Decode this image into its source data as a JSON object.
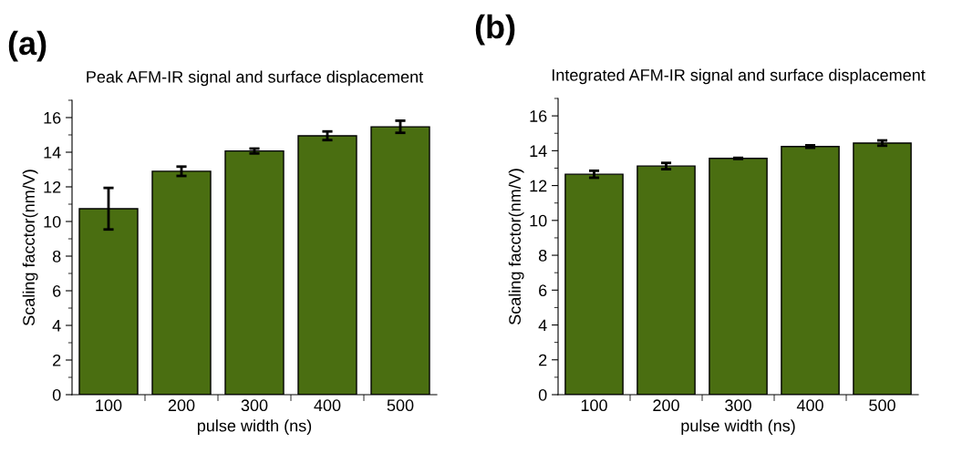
{
  "chart_data": [
    {
      "type": "bar",
      "title": "Peak AFM-IR signal and surface displacement",
      "xlabel": "pulse width (ns)",
      "ylabel": "Scaling facctor(nm/V)",
      "annotations": [
        "(a)"
      ],
      "categories": [
        "100",
        "200",
        "300",
        "400",
        "500"
      ],
      "values": [
        10.74,
        12.9,
        14.07,
        14.95,
        15.47
      ],
      "errors": [
        1.2,
        0.27,
        0.14,
        0.25,
        0.35
      ],
      "color": "#4a6e11",
      "ylim": [
        0,
        17
      ],
      "yticks": [
        0,
        2,
        4,
        6,
        8,
        10,
        12,
        14,
        16
      ],
      "grid": false
    },
    {
      "type": "bar",
      "title": "Integrated AFM-IR signal and surface displacement",
      "xlabel": "pulse width (ns)",
      "ylabel": "Scaling facctor(nm/V)",
      "annotations": [
        "(b)"
      ],
      "categories": [
        "100",
        "200",
        "300",
        "400",
        "500"
      ],
      "values": [
        12.65,
        13.12,
        13.56,
        14.24,
        14.44
      ],
      "errors": [
        0.2,
        0.18,
        0.03,
        0.07,
        0.15
      ],
      "color": "#4a6e11",
      "ylim": [
        0,
        17
      ],
      "yticks": [
        0,
        2,
        4,
        6,
        8,
        10,
        12,
        14,
        16
      ],
      "grid": false
    }
  ]
}
